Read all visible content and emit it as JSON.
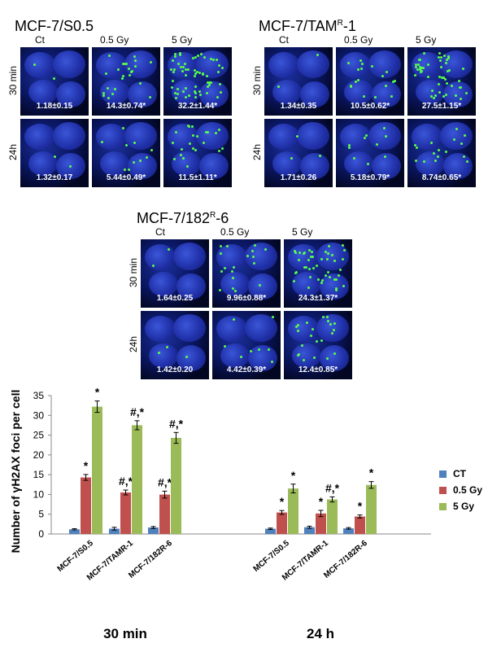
{
  "image_panels": [
    {
      "id": "s05",
      "title_main": "MCF-7/S0.5",
      "title_sup": "",
      "title_tail": "",
      "columns": [
        "Ct",
        "0.5 Gy",
        "5 Gy"
      ],
      "rows": [
        {
          "label": "30 min",
          "values": [
            "1.18±0.15",
            "14.3±0.74*",
            "32.2±1.44*"
          ],
          "foci": [
            2,
            24,
            60
          ]
        },
        {
          "label": "24h",
          "values": [
            "1.32±0.17",
            "5.44±0.49*",
            "11.5±1.11*"
          ],
          "foci": [
            2,
            10,
            22
          ]
        }
      ]
    },
    {
      "id": "tam",
      "title_main": "MCF-7/TAM",
      "title_sup": "R",
      "title_tail": "-1",
      "columns": [
        "Ct",
        "0.5 Gy",
        "5 Gy"
      ],
      "rows": [
        {
          "label": "30 min",
          "values": [
            "1.34±0.35",
            "10.5±0.62*",
            "27.5±1.15*"
          ],
          "foci": [
            2,
            18,
            50
          ]
        },
        {
          "label": "24h",
          "values": [
            "1.71±0.26",
            "5.18±0.79*",
            "8.74±0.65*"
          ],
          "foci": [
            3,
            10,
            16
          ]
        }
      ]
    },
    {
      "id": "r182",
      "title_main": "MCF-7/182",
      "title_sup": "R",
      "title_tail": "-6",
      "columns": [
        "Ct",
        "0.5 Gy",
        "5 Gy"
      ],
      "rows": [
        {
          "label": "30 min",
          "values": [
            "1.64±0.25",
            "9.96±0.88*",
            "24.3±1.37*"
          ],
          "foci": [
            2,
            18,
            44
          ]
        },
        {
          "label": "24h",
          "values": [
            "1.42±0.20",
            "4.42±0.39*",
            "12.4±0.85*"
          ],
          "foci": [
            3,
            8,
            22
          ]
        }
      ]
    }
  ],
  "chart_data": {
    "type": "bar",
    "ylabel": "Number of γH2AX foci per cell",
    "ylim": [
      0,
      35
    ],
    "yticks": [
      0,
      5,
      10,
      15,
      20,
      25,
      30,
      35
    ],
    "groups": [
      {
        "label": "30 min",
        "categories": [
          "MCF-7/S0.5",
          "MCF-7/TAMR-1",
          "MCF-7/182R-6"
        ]
      },
      {
        "label": "24 h",
        "categories": [
          "MCF-7/S0.5",
          "MCF-7/TAMR-1",
          "MCF-7/182R-6"
        ]
      }
    ],
    "series": [
      {
        "name": "CT",
        "color": "#4f81bd",
        "values": [
          1.18,
          1.34,
          1.64,
          1.32,
          1.71,
          1.42
        ],
        "errors": [
          0.15,
          0.35,
          0.25,
          0.17,
          0.26,
          0.2
        ],
        "marks": [
          "",
          "",
          "",
          "",
          "",
          ""
        ]
      },
      {
        "name": "0.5 Gy",
        "color": "#c0504d",
        "values": [
          14.3,
          10.5,
          9.96,
          5.44,
          5.18,
          4.42
        ],
        "errors": [
          0.74,
          0.62,
          0.88,
          0.49,
          0.79,
          0.39
        ],
        "marks": [
          "*",
          "#,*",
          "#,*",
          "*",
          "*",
          "*"
        ]
      },
      {
        "name": "5 Gy",
        "color": "#9bbb59",
        "values": [
          32.2,
          27.5,
          24.3,
          11.5,
          8.74,
          12.4
        ],
        "errors": [
          1.44,
          1.15,
          1.37,
          1.11,
          0.65,
          0.85
        ],
        "marks": [
          "*",
          "#,*",
          "#,*",
          "*",
          "#,*",
          "*"
        ]
      }
    ],
    "legend_position": "right",
    "grid": false
  }
}
